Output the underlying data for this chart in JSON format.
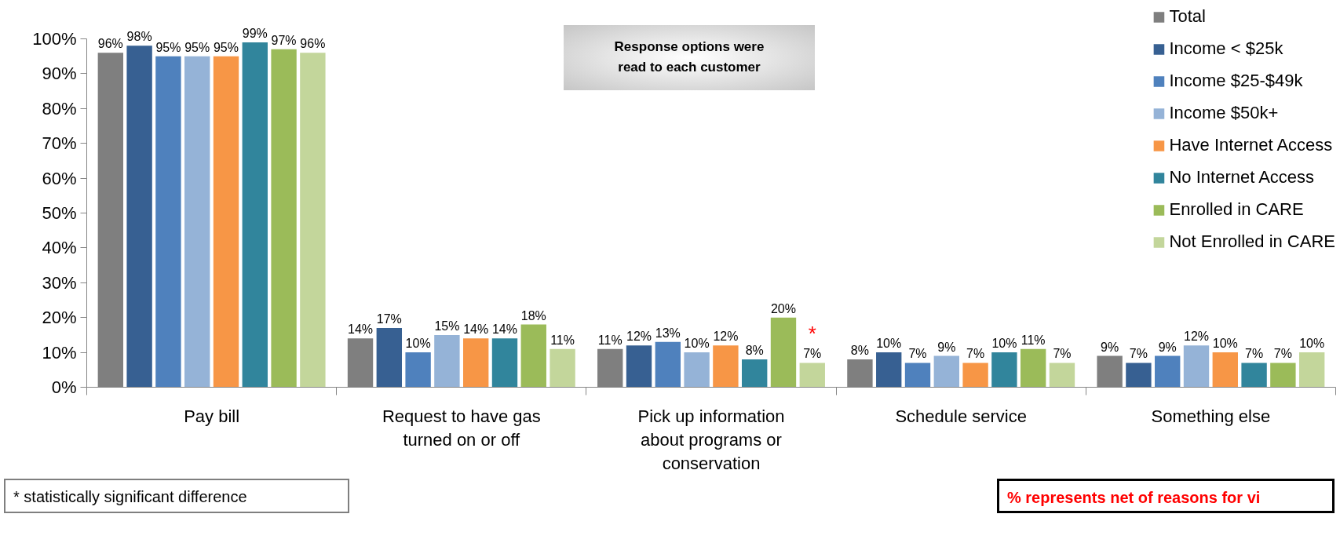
{
  "chart_data": {
    "type": "bar",
    "categories": [
      "Pay bill",
      "Request to have gas turned on or off",
      "Pick up information about programs or conservation",
      "Schedule service",
      "Something else"
    ],
    "ylim": [
      0,
      100
    ],
    "yticks": [
      {
        "value": 0,
        "label": "0%"
      },
      {
        "value": 10,
        "label": "10%"
      },
      {
        "value": 20,
        "label": "20%"
      },
      {
        "value": 30,
        "label": "30%"
      },
      {
        "value": 40,
        "label": "40%"
      },
      {
        "value": 50,
        "label": "50%"
      },
      {
        "value": 60,
        "label": "60%"
      },
      {
        "value": 70,
        "label": "70%"
      },
      {
        "value": 80,
        "label": "80%"
      },
      {
        "value": 90,
        "label": "90%"
      },
      {
        "value": 100,
        "label": "100%"
      }
    ],
    "legend": "top right",
    "series": [
      {
        "name": "Total",
        "color": "#7f7f7f",
        "values": [
          96,
          14,
          11,
          8,
          9
        ],
        "value_labels": [
          "96%",
          "14%",
          "11%",
          "8%",
          "9%"
        ]
      },
      {
        "name": "Income < $25k",
        "color": "#376092",
        "values": [
          98,
          17,
          12,
          10,
          7
        ],
        "value_labels": [
          "98%",
          "17%",
          "12%",
          "10%",
          "7%"
        ]
      },
      {
        "name": "Income $25-$49k",
        "color": "#4f81bd",
        "values": [
          95,
          10,
          13,
          7,
          9
        ],
        "value_labels": [
          "95%",
          "10%",
          "13%",
          "7%",
          "9%"
        ]
      },
      {
        "name": "Income $50k+",
        "color": "#95b3d7",
        "values": [
          95,
          15,
          10,
          9,
          12
        ],
        "value_labels": [
          "95%",
          "15%",
          "10%",
          "9%",
          "12%"
        ]
      },
      {
        "name": "Have Internet Access",
        "color": "#f79646",
        "values": [
          95,
          14,
          12,
          7,
          10
        ],
        "value_labels": [
          "95%",
          "14%",
          "12%",
          "7%",
          "10%"
        ]
      },
      {
        "name": "No Internet Access",
        "color": "#31859c",
        "values": [
          99,
          14,
          8,
          10,
          7
        ],
        "value_labels": [
          "99%",
          "14%",
          "8%",
          "10%",
          "7%"
        ]
      },
      {
        "name": "Enrolled in CARE",
        "color": "#9bbb59",
        "values": [
          97,
          18,
          20,
          11,
          7
        ],
        "value_labels": [
          "97%",
          "18%",
          "20%",
          "11%",
          "7%"
        ]
      },
      {
        "name": "Not Enrolled in CARE",
        "color": "#c3d69b",
        "values": [
          96,
          11,
          7,
          7,
          10
        ],
        "value_labels": [
          "96%",
          "11%",
          "7%",
          "7%",
          "10%"
        ]
      }
    ],
    "annotations": [
      "Response options were read to each customer",
      "*",
      "* statistically significant difference",
      "% represents net of reasons for vi"
    ]
  }
}
